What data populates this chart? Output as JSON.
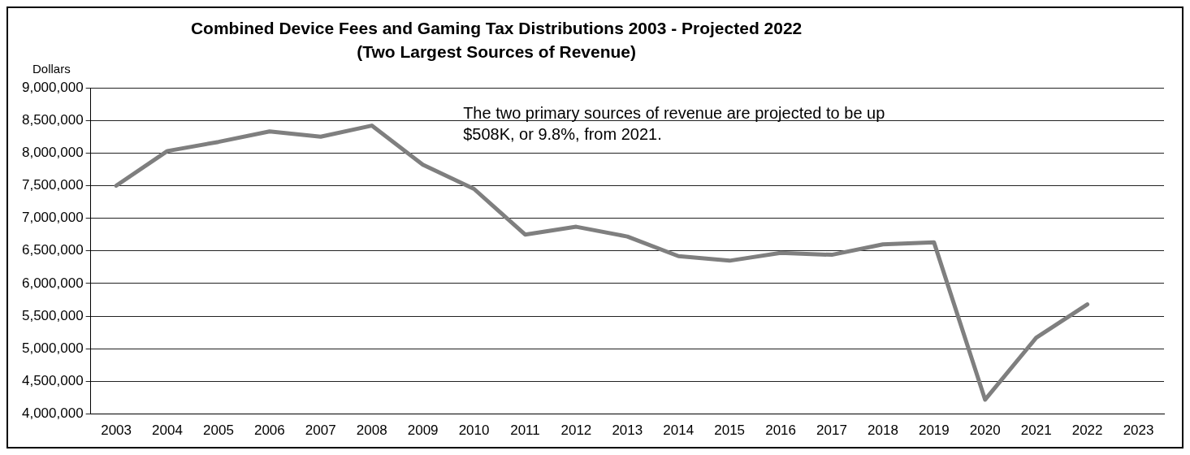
{
  "chart_data": {
    "type": "line",
    "title": [
      "Combined Device Fees and Gaming Tax Distributions 2003 - Projected 2022",
      "(Two Largest Sources of Revenue)"
    ],
    "ylabel": "Dollars",
    "categories": [
      "2003",
      "2004",
      "2005",
      "2006",
      "2007",
      "2008",
      "2009",
      "2010",
      "2011",
      "2012",
      "2013",
      "2014",
      "2015",
      "2016",
      "2017",
      "2018",
      "2019",
      "2020",
      "2021",
      "2022",
      "2023"
    ],
    "series": [
      {
        "color": "#7f7f7f",
        "values": [
          7500000,
          8030000,
          8170000,
          8330000,
          8250000,
          8420000,
          7820000,
          7450000,
          6750000,
          6870000,
          6720000,
          6420000,
          6350000,
          6470000,
          6440000,
          6600000,
          6630000,
          4220000,
          5170000,
          5680000,
          null
        ]
      }
    ],
    "ylim": [
      4000000,
      9000000
    ],
    "yticks": [
      {
        "value": 4000000,
        "label": "4,000,000"
      },
      {
        "value": 4500000,
        "label": "4,500,000"
      },
      {
        "value": 5000000,
        "label": "5,000,000"
      },
      {
        "value": 5500000,
        "label": "5,500,000"
      },
      {
        "value": 6000000,
        "label": "6,000,000"
      },
      {
        "value": 6500000,
        "label": "6,500,000"
      },
      {
        "value": 7000000,
        "label": "7,000,000"
      },
      {
        "value": 7500000,
        "label": "7,500,000"
      },
      {
        "value": 8000000,
        "label": "8,000,000"
      },
      {
        "value": 8500000,
        "label": "8,500,000"
      },
      {
        "value": 9000000,
        "label": "9,000,000"
      }
    ],
    "grid": "y",
    "marker": "none",
    "line_style": "solid",
    "legend": false,
    "annotations": [
      "The two primary sources of revenue are projected to be up $508K, or 9.8%, from 2021."
    ]
  }
}
